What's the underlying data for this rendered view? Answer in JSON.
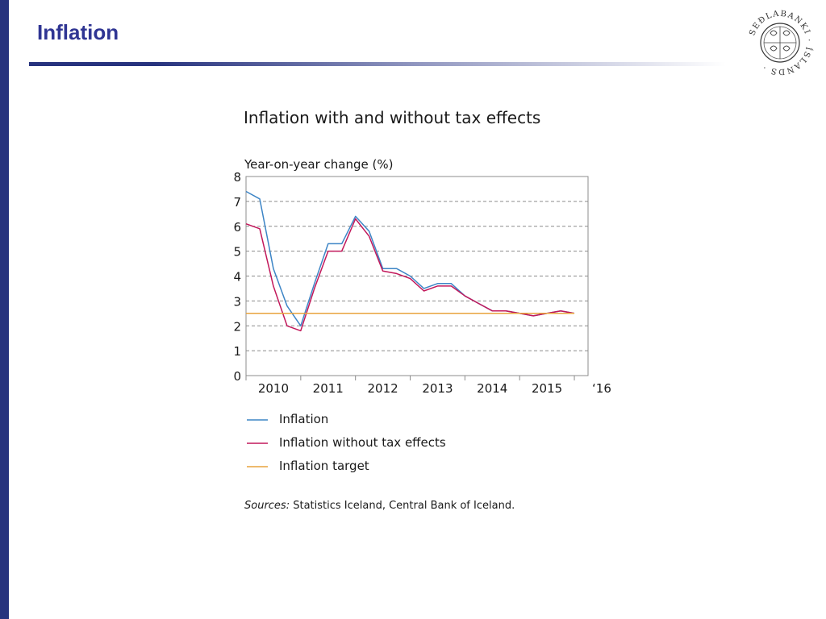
{
  "slide": {
    "title": "Inflation",
    "logo_text": "SEÐLABANKI ÍSLANDS",
    "accent_color": "#2f3593"
  },
  "chart_data": {
    "type": "line",
    "title": "Inflation with and without tax effects",
    "ylabel": "Year-on-year change (%)",
    "ylim": [
      0,
      8
    ],
    "yticks": [
      "0",
      "1",
      "2",
      "3",
      "4",
      "5",
      "6",
      "7",
      "8"
    ],
    "xlim": [
      2010,
      2016.25
    ],
    "xtick_labels": [
      {
        "label": "2010",
        "year": 2010
      },
      {
        "label": "2011",
        "year": 2011
      },
      {
        "label": "2012",
        "year": 2012
      },
      {
        "label": "2013",
        "year": 2013
      },
      {
        "label": "2014",
        "year": 2014
      },
      {
        "label": "2015",
        "year": 2015
      },
      {
        "label": "‘16",
        "year": 2016
      }
    ],
    "grid": "horizontal-dashed",
    "legend_position": "bottom-left",
    "x": [
      2010.0,
      2010.25,
      2010.5,
      2010.75,
      2011.0,
      2011.25,
      2011.5,
      2011.75,
      2012.0,
      2012.25,
      2012.5,
      2012.75,
      2013.0,
      2013.25,
      2013.5,
      2013.75,
      2014.0,
      2014.25,
      2014.5,
      2014.75,
      2015.0,
      2015.25,
      2015.5,
      2015.75,
      2016.0,
      2016.25
    ],
    "series": [
      {
        "name": "Inflation",
        "color": "#3d85c6",
        "values": [
          7.4,
          7.1,
          4.3,
          2.8,
          2.0,
          3.7,
          5.3,
          5.3,
          6.4,
          5.8,
          4.3,
          4.3,
          4.0,
          3.5,
          3.7,
          3.7,
          3.2,
          2.9,
          2.6,
          2.6,
          2.5,
          2.4,
          2.5,
          2.6,
          2.5,
          null
        ]
      },
      {
        "name": "Inflation without tax effects",
        "color": "#c2185b",
        "values": [
          6.1,
          5.9,
          3.6,
          2.0,
          1.8,
          3.5,
          5.0,
          5.0,
          6.3,
          5.6,
          4.2,
          4.1,
          3.9,
          3.4,
          3.6,
          3.6,
          3.2,
          2.9,
          2.6,
          2.6,
          2.5,
          2.4,
          2.5,
          2.6,
          2.5,
          null
        ]
      },
      {
        "name": "Inflation target",
        "color": "#e8a33d",
        "values": [
          2.5,
          2.5,
          2.5,
          2.5,
          2.5,
          2.5,
          2.5,
          2.5,
          2.5,
          2.5,
          2.5,
          2.5,
          2.5,
          2.5,
          2.5,
          2.5,
          2.5,
          2.5,
          2.5,
          2.5,
          2.5,
          2.5,
          2.5,
          2.5,
          2.5,
          null
        ]
      }
    ],
    "source_prefix": "Sources:",
    "source_text": "Statistics Iceland, Central Bank of Iceland."
  }
}
